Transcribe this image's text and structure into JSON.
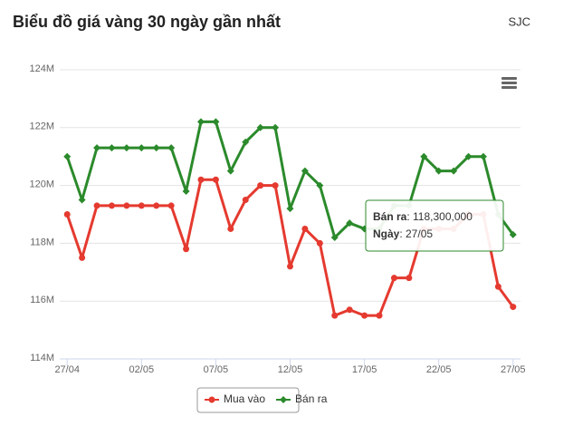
{
  "chart_data": {
    "type": "line",
    "title": "Biểu đồ giá vàng 30 ngày gần nhất",
    "subtitle": "SJC",
    "categories": [
      "27/04",
      null,
      null,
      null,
      null,
      "02/05",
      null,
      null,
      null,
      null,
      "07/05",
      null,
      null,
      null,
      null,
      "12/05",
      null,
      null,
      null,
      null,
      "17/05",
      null,
      null,
      null,
      null,
      "22/05",
      null,
      null,
      null,
      null,
      "27/05"
    ],
    "series": [
      {
        "name": "Mua vào",
        "color": "#e53a2f",
        "marker": "circle",
        "values": [
          119.0,
          117.5,
          119.3,
          119.3,
          119.3,
          119.3,
          119.3,
          119.3,
          117.8,
          120.2,
          120.2,
          118.5,
          119.5,
          120.0,
          120.0,
          117.2,
          118.5,
          118.0,
          115.5,
          115.7,
          115.5,
          115.5,
          116.8,
          116.8,
          118.5,
          118.5,
          118.5,
          119.0,
          119.0,
          116.5,
          115.8
        ]
      },
      {
        "name": "Bán ra",
        "color": "#2b8a2b",
        "marker": "diamond",
        "values": [
          121.0,
          119.5,
          121.3,
          121.3,
          121.3,
          121.3,
          121.3,
          121.3,
          119.8,
          122.2,
          122.2,
          120.5,
          121.5,
          122.0,
          122.0,
          119.2,
          120.5,
          120.0,
          118.2,
          118.7,
          118.5,
          118.5,
          119.3,
          119.3,
          121.0,
          120.5,
          120.5,
          121.0,
          121.0,
          119.0,
          118.3
        ]
      }
    ],
    "ylim": [
      114,
      124
    ],
    "yticks": [
      {
        "value": 114,
        "label": "114M"
      },
      {
        "value": 116,
        "label": "116M"
      },
      {
        "value": 118,
        "label": "118M"
      },
      {
        "value": 120,
        "label": "120M"
      },
      {
        "value": 122,
        "label": "122M"
      },
      {
        "value": 124,
        "label": "124M"
      }
    ],
    "grid": true,
    "legend": "bottom"
  },
  "tooltip": {
    "lines": [
      [
        "Bán ra",
        ": 118,300,000"
      ],
      [
        "Ngày",
        ": 27/05"
      ]
    ]
  }
}
